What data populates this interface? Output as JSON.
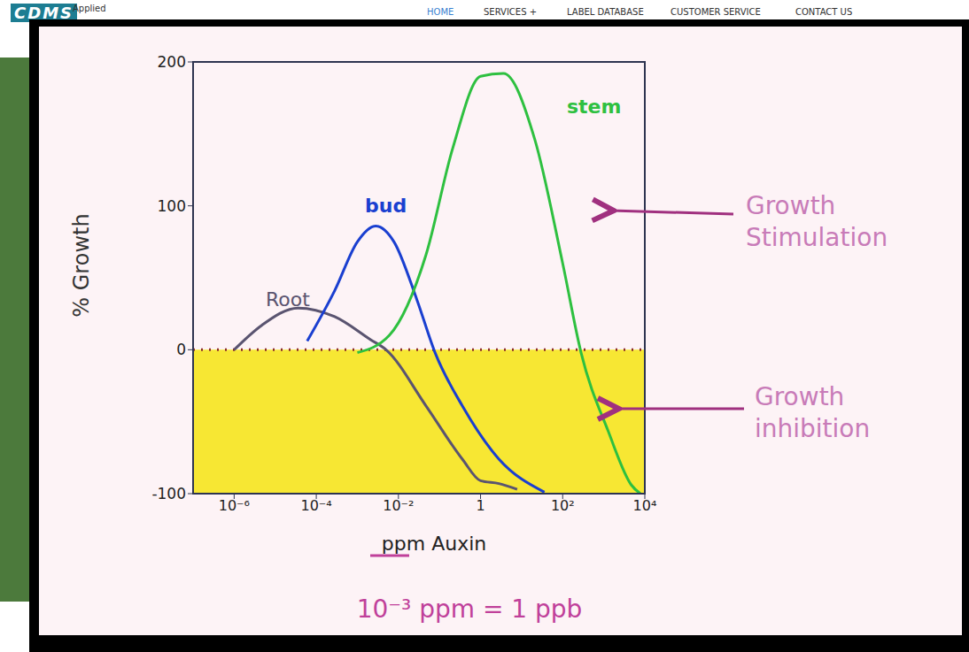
{
  "site_header": {
    "logo": "CDMS",
    "tagline": "Applied",
    "menu": [
      "HOME",
      "SERVICES +",
      "LABEL DATABASE",
      "CUSTOMER SERVICE",
      "CONTACT US"
    ]
  },
  "chart_data": {
    "type": "line",
    "xlabel": "ppm Auxin",
    "ylabel": "% Growth",
    "log": "x",
    "xlim": [
      1e-07,
      10000
    ],
    "ylim": [
      -100,
      200
    ],
    "xticks": [
      {
        "value": 1e-06,
        "label": "10⁻⁶"
      },
      {
        "value": 0.0001,
        "label": "10⁻⁴"
      },
      {
        "value": 0.01,
        "label": "10⁻²"
      },
      1,
      {
        "value": 100,
        "label": "10²"
      },
      {
        "value": 10000,
        "label": "10⁴"
      }
    ],
    "yticks": [
      -100,
      0,
      100,
      200
    ],
    "series": [
      {
        "name": "Root",
        "color": "#5a5470",
        "x": [
          1e-06,
          4.7e-06,
          3.6e-05,
          0.00028,
          0.0021,
          0.005,
          0.047,
          0.36,
          1,
          2.8,
          7.8
        ],
        "values": [
          0,
          17,
          29,
          23,
          7,
          0,
          -39,
          -76,
          -91,
          -93,
          -97
        ]
      },
      {
        "name": "bud",
        "color": "#1a3fd0",
        "x": [
          6e-05,
          0.00028,
          0.001,
          0.0028,
          0.0078,
          0.028,
          0.078,
          0.36,
          2.8,
          36
        ],
        "values": [
          6,
          41,
          75,
          86,
          75,
          35,
          -2,
          -39,
          -76,
          -99
        ]
      },
      {
        "name": "stem",
        "color": "#2ec040",
        "x": [
          0.001,
          0.006,
          0.047,
          0.21,
          1,
          3.6,
          21,
          100,
          280,
          1300,
          4700,
          7800
        ],
        "values": [
          -2,
          10,
          66,
          140,
          190,
          192,
          146,
          60,
          -2,
          -57,
          -94,
          -100
        ]
      }
    ],
    "regions": [
      {
        "label": "Growth inhibition",
        "y": [
          -100,
          0
        ],
        "color": "#f7e733"
      }
    ],
    "annotations": [
      {
        "text": "Growth Stimulation",
        "color": "#c87bb8"
      },
      {
        "text": "Growth inhibition",
        "color": "#c87bb8"
      },
      {
        "text": "10⁻³ ppm = 1 ppb",
        "color": "#c0409a"
      }
    ]
  }
}
